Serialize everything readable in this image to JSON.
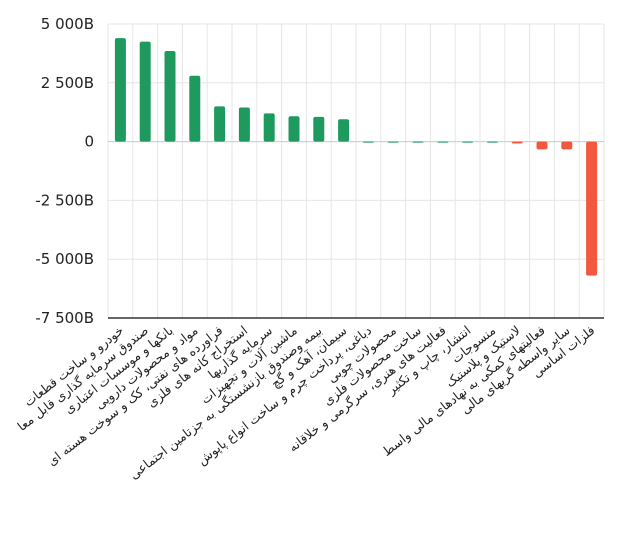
{
  "chart_data": {
    "type": "bar",
    "title": "",
    "xlabel": "",
    "ylabel": "",
    "ylim": [
      -7500,
      5000
    ],
    "y_ticks": [
      {
        "value": 5000,
        "label": "5 000B"
      },
      {
        "value": 2500,
        "label": "2 500B"
      },
      {
        "value": 0,
        "label": "0"
      },
      {
        "value": -2500,
        "label": "-2 500B"
      },
      {
        "value": -5000,
        "label": "-5 000B"
      },
      {
        "value": -7500,
        "label": "-7 500B"
      }
    ],
    "grid": true,
    "legend": "none",
    "categories": [
      "خودرو و ساخت قطعات",
      "صندوق سرمایه گذاری قابل معا",
      "بانکها و موسسات اعتباری",
      "مواد و محصولات دارویی",
      "فراورده های نفتی، کک و سوخت هسته ای",
      "استخراج کانه های فلزی",
      "سرمایه گذاریها",
      "ماشین آلات و تجهیزات",
      "بیمه وصندوق بازنشستگی به جزتامین اجتماعی",
      "سیمان، آهک و گچ",
      "دباغی، پرداخت چرم و ساخت انواع پاپوش",
      "محصولات چوبی",
      "ساخت محصولات فلزی",
      "فعالیت های هنری، سرگرمی و خلاقانه",
      "انتشار، چاپ و تکثیر",
      "منسوجات",
      "لاستیک و پلاستیک",
      "فعالیتهای کمکی به نهادهای مالی واسط",
      "سایر واسطه گریهای مالی",
      "فلزات اساسی"
    ],
    "values": [
      4400,
      4250,
      3850,
      2800,
      1500,
      1450,
      1200,
      1080,
      1050,
      950,
      0,
      0,
      0,
      0,
      0,
      0,
      -80,
      -330,
      -330,
      -5700
    ],
    "positive_color": "#1f9a5f",
    "negative_color": "#f2583e",
    "grid_color": "#e6e6e6",
    "axis_color": "#333333"
  }
}
